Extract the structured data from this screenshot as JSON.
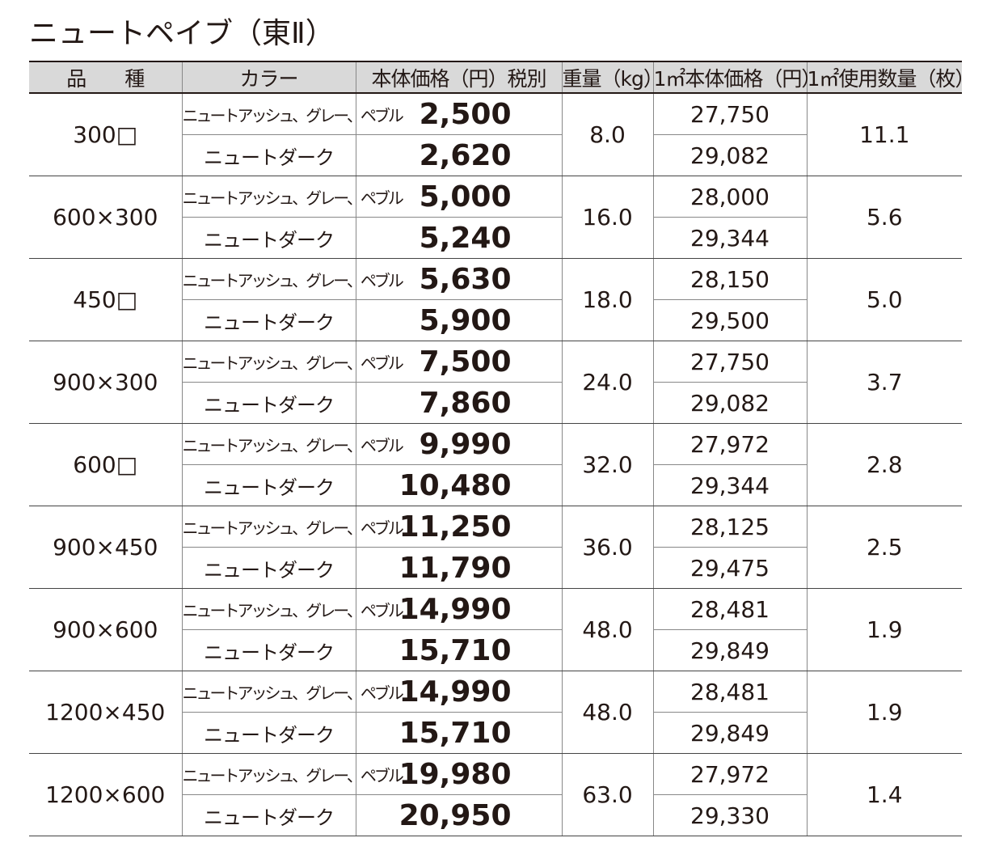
{
  "title": "ニュートペイブ（東Ⅱ）",
  "header": [
    "品　　種",
    "カラー",
    "本体価格（円）税別",
    "重量（kg）",
    "1㎡本体価格（円）",
    "1㎡使用数量（枚）"
  ],
  "groups": [
    {
      "size": "300□",
      "weight": "8.0",
      "qty": "11.1",
      "items": [
        {
          "color": "ニュートアッシュ、グレー、ペブル",
          "price": "2,500",
          "price_m2": "27,750"
        },
        {
          "color": "ニュートダーク",
          "price": "2,620",
          "price_m2": "29,082"
        }
      ]
    },
    {
      "size": "600×300",
      "weight": "16.0",
      "qty": "5.6",
      "items": [
        {
          "color": "ニュートアッシュ、グレー、ペブル",
          "price": "5,000",
          "price_m2": "28,000"
        },
        {
          "color": "ニュートダーク",
          "price": "5,240",
          "price_m2": "29,344"
        }
      ]
    },
    {
      "size": "450□",
      "weight": "18.0",
      "qty": "5.0",
      "items": [
        {
          "color": "ニュートアッシュ、グレー、ペブル",
          "price": "5,630",
          "price_m2": "28,150"
        },
        {
          "color": "ニュートダーク",
          "price": "5,900",
          "price_m2": "29,500"
        }
      ]
    },
    {
      "size": "900×300",
      "weight": "24.0",
      "qty": "3.7",
      "items": [
        {
          "color": "ニュートアッシュ、グレー、ペブル",
          "price": "7,500",
          "price_m2": "27,750"
        },
        {
          "color": "ニュートダーク",
          "price": "7,860",
          "price_m2": "29,082"
        }
      ]
    },
    {
      "size": "600□",
      "weight": "32.0",
      "qty": "2.8",
      "items": [
        {
          "color": "ニュートアッシュ、グレー、ペブル",
          "price": "9,990",
          "price_m2": "27,972"
        },
        {
          "color": "ニュートダーク",
          "price": "10,480",
          "price_m2": "29,344"
        }
      ]
    },
    {
      "size": "900×450",
      "weight": "36.0",
      "qty": "2.5",
      "items": [
        {
          "color": "ニュートアッシュ、グレー、ペブル",
          "price": "11,250",
          "price_m2": "28,125"
        },
        {
          "color": "ニュートダーク",
          "price": "11,790",
          "price_m2": "29,475"
        }
      ]
    },
    {
      "size": "900×600",
      "weight": "48.0",
      "qty": "1.9",
      "items": [
        {
          "color": "ニュートアッシュ、グレー、ペブル",
          "price": "14,990",
          "price_m2": "28,481"
        },
        {
          "color": "ニュートダーク",
          "price": "15,710",
          "price_m2": "29,849"
        }
      ]
    },
    {
      "size": "1200×450",
      "weight": "48.0",
      "qty": "1.9",
      "items": [
        {
          "color": "ニュートアッシュ、グレー、ペブル",
          "price": "14,990",
          "price_m2": "28,481"
        },
        {
          "color": "ニュートダーク",
          "price": "15,710",
          "price_m2": "29,849"
        }
      ]
    },
    {
      "size": "1200×600",
      "weight": "63.0",
      "qty": "1.4",
      "items": [
        {
          "color": "ニュートアッシュ、グレー、ペブル",
          "price": "19,980",
          "price_m2": "27,972"
        },
        {
          "color": "ニュートダーク",
          "price": "20,950",
          "price_m2": "29,330"
        }
      ]
    }
  ]
}
